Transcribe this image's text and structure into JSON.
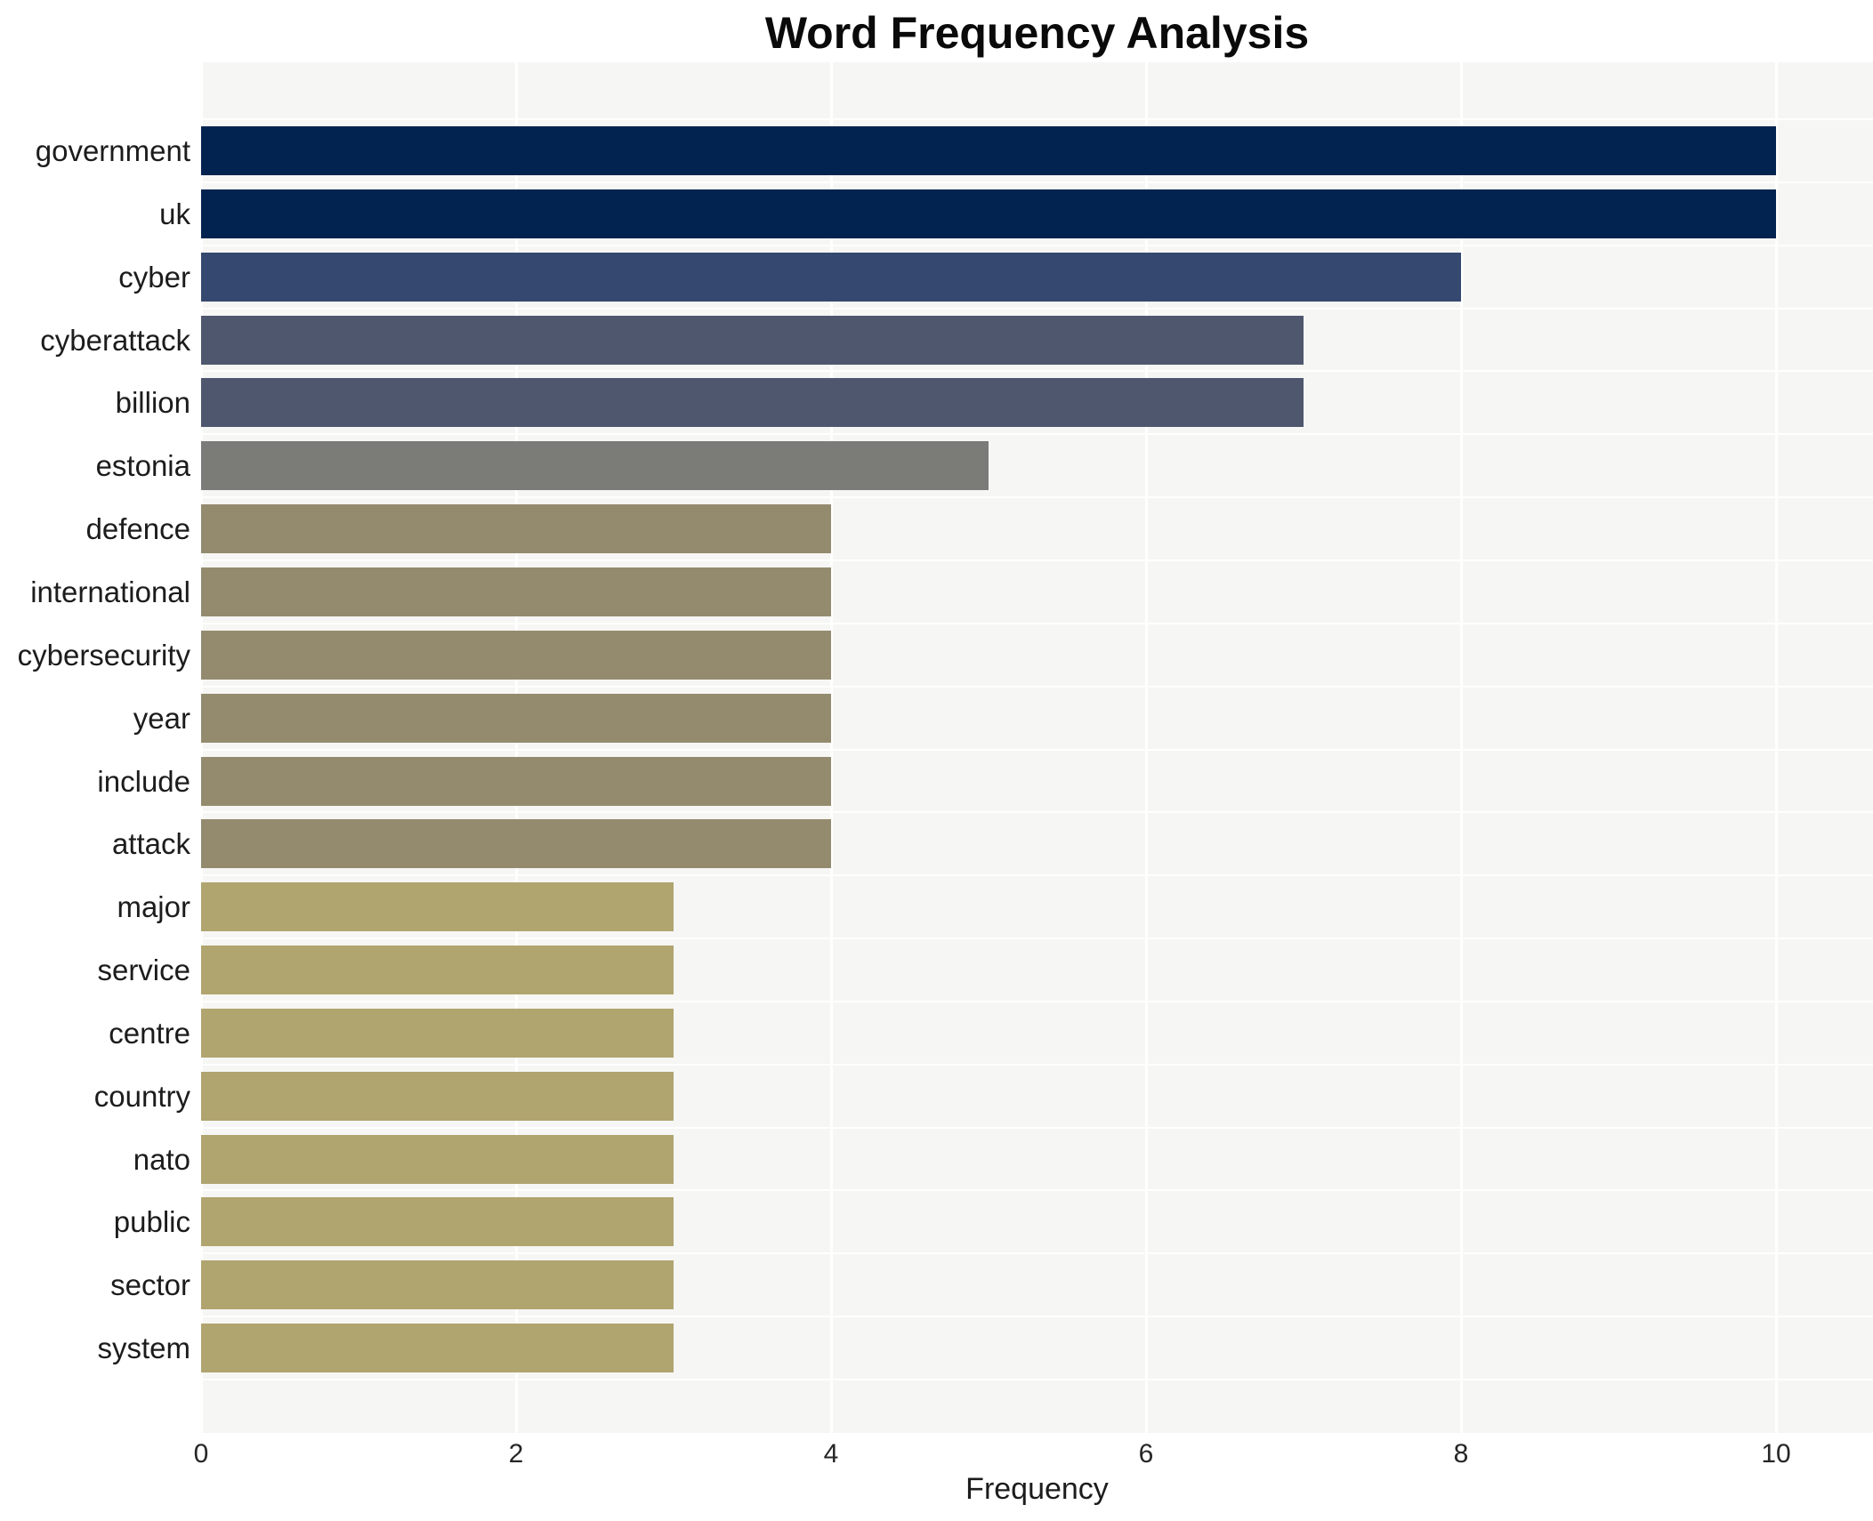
{
  "title": "Word Frequency Analysis",
  "chart_data": {
    "type": "bar",
    "orientation": "horizontal",
    "title": "Word Frequency Analysis",
    "xlabel": "Frequency",
    "ylabel": "",
    "categories": [
      "government",
      "uk",
      "cyber",
      "cyberattack",
      "billion",
      "estonia",
      "defence",
      "international",
      "cybersecurity",
      "year",
      "include",
      "attack",
      "major",
      "service",
      "centre",
      "country",
      "nato",
      "public",
      "sector",
      "system"
    ],
    "values": [
      10,
      10,
      8,
      7,
      7,
      5,
      4,
      4,
      4,
      4,
      4,
      4,
      3,
      3,
      3,
      3,
      3,
      3,
      3,
      3
    ],
    "bar_colors": [
      "#02234f",
      "#02234f",
      "#35486f",
      "#4f576e",
      "#4f576e",
      "#7b7b78",
      "#948b6f",
      "#948b6f",
      "#948b6f",
      "#948b6f",
      "#948b6f",
      "#948b6f",
      "#b0a46f",
      "#b0a46f",
      "#b0a46f",
      "#b0a46f",
      "#b0a46f",
      "#b0a46f",
      "#b0a46f",
      "#b0a46f"
    ],
    "xticks": [
      0,
      2,
      4,
      6,
      8,
      10
    ],
    "xlim": [
      0,
      10.6
    ],
    "grid": true,
    "legend_position": "none",
    "plot_background": "#f6f6f4",
    "gridline_color": "#ffffff",
    "colormap_note": "cividis dark-navy to khaki by descending frequency"
  }
}
